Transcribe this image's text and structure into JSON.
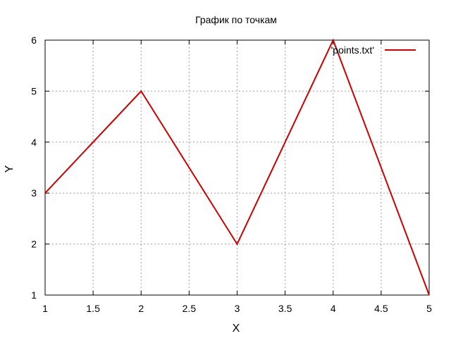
{
  "chart_data": {
    "type": "line",
    "title": "График по точкам",
    "xlabel": "X",
    "ylabel": "Y",
    "xlim": [
      1,
      5
    ],
    "ylim": [
      1,
      6
    ],
    "xticks": [
      "1",
      "1.5",
      "2",
      "2.5",
      "3",
      "3.5",
      "4",
      "4.5",
      "5"
    ],
    "yticks": [
      "1",
      "2",
      "3",
      "4",
      "5",
      "6"
    ],
    "grid": true,
    "legend_position": "top-right",
    "series": [
      {
        "name": "'points.txt'",
        "color": "#cc0000",
        "x": [
          1,
          2,
          3,
          4,
          5
        ],
        "y": [
          3,
          5,
          2,
          6,
          1
        ]
      }
    ]
  }
}
